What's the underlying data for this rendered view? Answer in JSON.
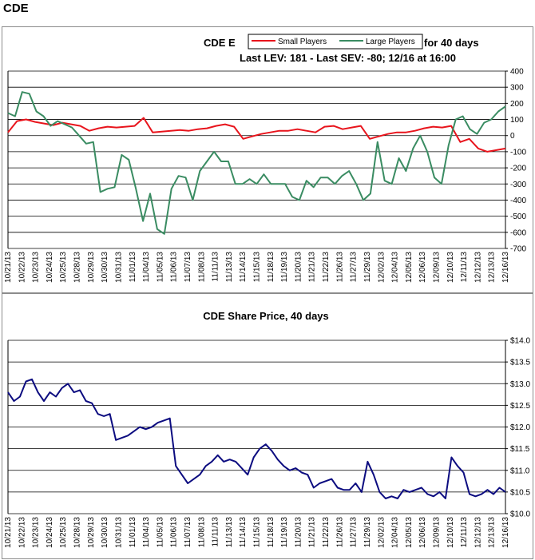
{
  "page": {
    "title": "CDE"
  },
  "chart_data": [
    {
      "type": "line",
      "title_left": "CDE E",
      "title_right": "for 40 days",
      "subtitle": "Last LEV: 181 - Last SEV: -80; 12/16 at 16:00",
      "ylim": [
        -700,
        400
      ],
      "yticks": [
        "400",
        "300",
        "200",
        "100",
        "0",
        "-100",
        "-200",
        "-300",
        "-400",
        "-500",
        "-600",
        "-700"
      ],
      "xticks": [
        "10/21/13",
        "10/22/13",
        "10/23/13",
        "10/24/13",
        "10/25/13",
        "10/28/13",
        "10/29/13",
        "10/30/13",
        "10/31/13",
        "11/01/13",
        "11/04/13",
        "11/05/13",
        "11/06/13",
        "11/07/13",
        "11/08/13",
        "11/11/13",
        "11/13/13",
        "11/14/13",
        "11/15/13",
        "11/18/13",
        "11/19/13",
        "11/20/13",
        "11/21/13",
        "11/22/13",
        "11/26/13",
        "11/27/13",
        "11/29/13",
        "12/02/13",
        "12/04/13",
        "12/05/13",
        "12/06/13",
        "12/09/13",
        "12/10/13",
        "12/11/13",
        "12/12/13",
        "12/13/13",
        "12/16/13"
      ],
      "grid": true,
      "legend": "top-center",
      "series": [
        {
          "name": "Small Players",
          "color": "#e8141c",
          "values": [
            20,
            90,
            100,
            85,
            75,
            65,
            80,
            70,
            60,
            30,
            45,
            55,
            50,
            55,
            60,
            110,
            20,
            25,
            30,
            35,
            30,
            40,
            45,
            60,
            70,
            55,
            -20,
            -5,
            10,
            20,
            30,
            30,
            40,
            30,
            20,
            55,
            60,
            40,
            50,
            60,
            -20,
            -5,
            10,
            20,
            20,
            30,
            45,
            55,
            50,
            60,
            -40,
            -20,
            -80,
            -100,
            -90,
            -80
          ]
        },
        {
          "name": "Large Players",
          "color": "#3a8c62",
          "values": [
            140,
            120,
            270,
            260,
            150,
            120,
            60,
            90,
            70,
            50,
            0,
            -50,
            -40,
            -350,
            -330,
            -320,
            -120,
            -150,
            -330,
            -530,
            -360,
            -580,
            -610,
            -330,
            -250,
            -260,
            -400,
            -220,
            -160,
            -100,
            -160,
            -160,
            -300,
            -300,
            -270,
            -300,
            -240,
            -300,
            -300,
            -300,
            -380,
            -400,
            -280,
            -320,
            -260,
            -260,
            -300,
            -250,
            -220,
            -300,
            -400,
            -360,
            -40,
            -280,
            -300,
            -140,
            -220,
            -80,
            0,
            -100,
            -260,
            -300,
            -60,
            100,
            120,
            40,
            10,
            80,
            100,
            150,
            181
          ]
        }
      ]
    },
    {
      "type": "line",
      "title": "CDE Share Price, 40 days",
      "ylim": [
        10.0,
        14.0
      ],
      "yticks": [
        "$14.0",
        "$13.5",
        "$13.0",
        "$12.5",
        "$12.0",
        "$11.5",
        "$11.0",
        "$10.5",
        "$10.0"
      ],
      "xticks": [
        "10/21/13",
        "10/22/13",
        "10/23/13",
        "10/24/13",
        "10/25/13",
        "10/28/13",
        "10/29/13",
        "10/30/13",
        "10/31/13",
        "11/01/13",
        "11/04/13",
        "11/05/13",
        "11/06/13",
        "11/07/13",
        "11/08/13",
        "11/11/13",
        "11/13/13",
        "11/14/13",
        "11/15/13",
        "11/18/13",
        "11/19/13",
        "11/20/13",
        "11/21/13",
        "11/22/13",
        "11/26/13",
        "11/27/13",
        "11/29/13",
        "12/02/13",
        "12/04/13",
        "12/05/13",
        "12/06/13",
        "12/09/13",
        "12/10/13",
        "12/11/13",
        "12/12/13",
        "12/13/13",
        "12/16/13"
      ],
      "grid": true,
      "series": [
        {
          "name": "CDE",
          "color": "#0c0c80",
          "values": [
            12.8,
            12.6,
            12.7,
            13.05,
            13.1,
            12.8,
            12.6,
            12.8,
            12.7,
            12.9,
            13.0,
            12.8,
            12.85,
            12.6,
            12.55,
            12.3,
            12.25,
            12.3,
            11.7,
            11.75,
            11.8,
            11.9,
            12.0,
            11.95,
            12.0,
            12.1,
            12.15,
            12.2,
            11.1,
            10.9,
            10.7,
            10.8,
            10.9,
            11.1,
            11.2,
            11.35,
            11.2,
            11.25,
            11.2,
            11.05,
            10.9,
            11.3,
            11.5,
            11.6,
            11.45,
            11.25,
            11.1,
            11.0,
            11.05,
            10.95,
            10.9,
            10.6,
            10.7,
            10.75,
            10.8,
            10.6,
            10.55,
            10.55,
            10.7,
            10.5,
            11.2,
            10.9,
            10.5,
            10.35,
            10.4,
            10.35,
            10.55,
            10.5,
            10.55,
            10.6,
            10.45,
            10.4,
            10.5,
            10.35,
            11.3,
            11.1,
            10.95,
            10.45,
            10.4,
            10.45,
            10.55,
            10.45,
            10.6,
            10.5
          ]
        }
      ]
    }
  ]
}
